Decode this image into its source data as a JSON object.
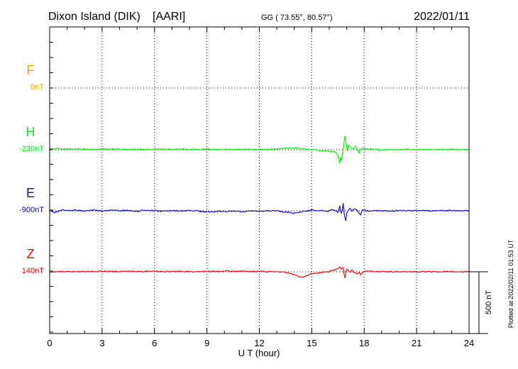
{
  "header": {
    "station": "Dixon Island (DIK)",
    "institute": "[AARI]",
    "coords": "GG ( 73.55°,  80.57°)",
    "date": "2022/01/11"
  },
  "footer": {
    "plotted": "Plotted at 2022/02/11 01:53 UT"
  },
  "chart_data": {
    "type": "line",
    "title": "Dixon Island (DIK)  [AARI]",
    "xlabel": "U T (hour)",
    "xlim": [
      0,
      24
    ],
    "xticks": [
      "0",
      "3",
      "6",
      "9",
      "12",
      "15",
      "18",
      "21",
      "24"
    ],
    "grid": true,
    "scale_bar": "500 nT",
    "colors": {
      "F": "#f0a000",
      "H": "#00ee00",
      "E": "#0000cc",
      "Z": "#ee0000"
    },
    "series": [
      {
        "name": "F",
        "baseline": "0nT",
        "color": "#f0a000",
        "x": [],
        "y": []
      },
      {
        "name": "H",
        "baseline": "-230nT",
        "color": "#00ee00",
        "x": [
          0,
          0.25,
          0.5,
          0.75,
          1,
          1.5,
          2,
          2.5,
          3,
          3.5,
          4,
          4.5,
          5,
          5.5,
          6,
          6.5,
          7,
          7.5,
          8,
          8.5,
          9,
          9.5,
          10,
          10.5,
          11,
          11.5,
          12,
          12.5,
          13,
          13.2,
          13.5,
          13.8,
          14,
          14.3,
          14.6,
          15,
          15.3,
          15.6,
          15.9,
          16.2,
          16.4,
          16.5,
          16.55,
          16.6,
          16.65,
          16.7,
          16.75,
          16.8,
          16.85,
          16.9,
          16.95,
          17.0,
          17.05,
          17.1,
          17.2,
          17.3,
          17.4,
          17.5,
          17.6,
          17.7,
          17.8,
          17.9,
          18.0,
          18.3,
          18.6,
          19,
          19.5,
          20,
          20.5,
          21,
          21.5,
          22,
          22.5,
          23,
          23.5,
          24
        ],
        "y": [
          -5,
          8,
          12,
          4,
          8,
          3,
          5,
          2,
          6,
          2,
          4,
          1,
          5,
          2,
          4,
          3,
          2,
          4,
          3,
          2,
          5,
          1,
          3,
          2,
          4,
          2,
          3,
          2,
          6,
          10,
          14,
          18,
          16,
          12,
          6,
          2,
          -5,
          -10,
          -12,
          -15,
          -25,
          -45,
          -80,
          -110,
          -60,
          -90,
          -40,
          10,
          60,
          110,
          70,
          20,
          -10,
          40,
          20,
          10,
          5,
          30,
          5,
          -30,
          5,
          15,
          8,
          5,
          3,
          -2,
          2,
          0,
          3,
          1,
          2,
          1,
          2,
          1,
          1,
          2
        ]
      },
      {
        "name": "E",
        "baseline": "-900nT",
        "color": "#0000cc",
        "x": [
          0,
          0.25,
          0.5,
          0.75,
          1,
          1.5,
          2,
          2.5,
          3,
          3.5,
          4,
          4.5,
          5,
          5.5,
          6,
          6.5,
          7,
          7.5,
          8,
          8.5,
          9,
          9.5,
          10,
          10.5,
          11,
          11.5,
          12,
          12.5,
          13,
          13.5,
          14,
          14.3,
          14.6,
          15,
          15.3,
          15.6,
          15.9,
          16.2,
          16.4,
          16.5,
          16.55,
          16.6,
          16.65,
          16.7,
          16.75,
          16.8,
          16.85,
          16.9,
          16.95,
          17.0,
          17.1,
          17.2,
          17.3,
          17.4,
          17.5,
          17.6,
          17.7,
          17.8,
          17.9,
          18.0,
          18.3,
          18.6,
          19,
          19.5,
          20,
          20.5,
          21,
          21.5,
          22,
          22.5,
          23,
          23.5,
          24
        ],
        "y": [
          5,
          -15,
          -5,
          10,
          0,
          5,
          -3,
          4,
          -2,
          6,
          0,
          3,
          -4,
          5,
          0,
          -3,
          2,
          -2,
          3,
          -1,
          -10,
          -5,
          -6,
          -3,
          -7,
          -2,
          -3,
          2,
          0,
          -10,
          -20,
          -10,
          -3,
          5,
          -2,
          5,
          -5,
          10,
          0,
          -15,
          10,
          40,
          -5,
          -20,
          15,
          60,
          -15,
          -60,
          -80,
          -20,
          5,
          20,
          -5,
          10,
          15,
          5,
          -15,
          -35,
          10,
          5,
          -5,
          2,
          0,
          -2,
          1,
          0,
          1,
          0,
          1,
          0,
          1,
          0,
          1
        ]
      },
      {
        "name": "Z",
        "baseline": "140nT",
        "color": "#ee0000",
        "x": [
          0,
          0.5,
          1,
          1.5,
          2,
          2.5,
          3,
          3.5,
          4,
          4.5,
          5,
          5.5,
          6,
          6.5,
          7,
          7.5,
          8,
          8.5,
          9,
          9.5,
          10,
          10.5,
          11,
          11.5,
          12,
          12.5,
          13,
          13.5,
          13.8,
          14.0,
          14.2,
          14.4,
          14.6,
          14.8,
          15,
          15.3,
          15.6,
          15.9,
          16.2,
          16.5,
          16.6,
          16.7,
          16.8,
          16.85,
          16.9,
          16.95,
          17.0,
          17.1,
          17.2,
          17.3,
          17.4,
          17.5,
          17.6,
          17.7,
          17.8,
          17.9,
          18.0,
          18.3,
          18.6,
          19,
          19.5,
          20,
          20.5,
          21,
          21.5,
          22,
          22.5,
          23,
          23.5,
          24
        ],
        "y": [
          -3,
          0,
          2,
          0,
          1,
          3,
          5,
          3,
          1,
          4,
          2,
          3,
          5,
          2,
          2,
          3,
          1,
          2,
          2,
          3,
          5,
          4,
          3,
          2,
          2,
          1,
          0,
          -5,
          -15,
          -25,
          -35,
          -42,
          -38,
          -25,
          -15,
          -10,
          -5,
          -2,
          10,
          25,
          40,
          20,
          35,
          -20,
          -50,
          -10,
          20,
          10,
          -5,
          15,
          -5,
          -10,
          -20,
          -5,
          -25,
          -10,
          0,
          5,
          3,
          2,
          1,
          0,
          1,
          0,
          1,
          0,
          1,
          0,
          1,
          0
        ]
      }
    ]
  }
}
